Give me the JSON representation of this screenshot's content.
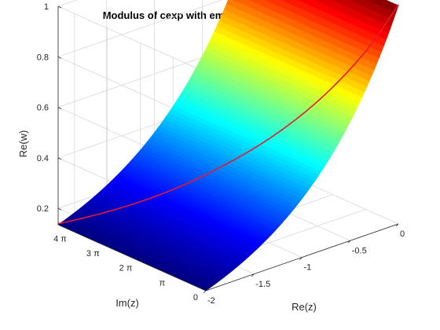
{
  "chart_data": {
    "type": "surface",
    "title": "Modulus of cexp with embedded path: mu=16 sig=2",
    "xlabel": "Re(z)",
    "ylabel": "Im(z)",
    "zlabel": "Re(w)",
    "xlim": [
      -2,
      0
    ],
    "ylim": [
      0,
      4.5
    ],
    "zlim": [
      0.1353,
      1
    ],
    "x_ticks": [
      {
        "value": -2,
        "label": "-2"
      },
      {
        "value": -1.5,
        "label": "-1.5"
      },
      {
        "value": -1,
        "label": "-1"
      },
      {
        "value": -0.5,
        "label": "-0.5"
      },
      {
        "value": 0,
        "label": "0"
      }
    ],
    "y_ticks": [
      {
        "value": 0,
        "label": "0"
      },
      {
        "value": 1,
        "label": "π"
      },
      {
        "value": 2,
        "label": "2 π"
      },
      {
        "value": 3,
        "label": "3 π"
      },
      {
        "value": 4,
        "label": "4 π"
      }
    ],
    "z_ticks": [
      {
        "value": 0.2,
        "label": "0.2"
      },
      {
        "value": 0.4,
        "label": "0.4"
      },
      {
        "value": 0.6,
        "label": "0.6"
      },
      {
        "value": 0.8,
        "label": "0.8"
      },
      {
        "value": 1,
        "label": "1"
      }
    ],
    "surface": {
      "function": "|exp(z)| = exp(Re(z))",
      "colormap": "jet"
    },
    "path": {
      "color": "#e8192c",
      "points": [
        {
          "x": -2.0,
          "y": 4.5
        },
        {
          "x": -1.5,
          "y": 3.4
        },
        {
          "x": -1.0,
          "y": 2.3
        },
        {
          "x": -0.5,
          "y": 1.1
        },
        {
          "x": -0.2,
          "y": 0.4
        },
        {
          "x": 0.0,
          "y": 0.0
        }
      ]
    },
    "grid": true,
    "box": false
  }
}
